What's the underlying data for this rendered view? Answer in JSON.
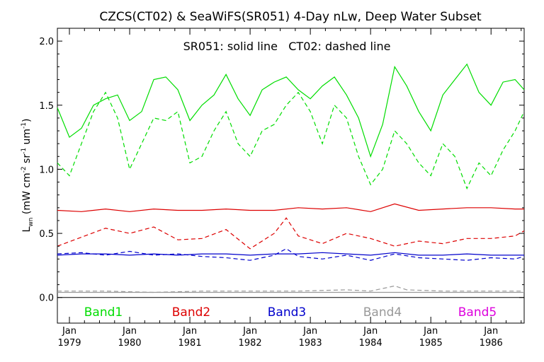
{
  "chart_data": {
    "type": "line",
    "title": "CZCS(CT02) & SeaWiFS(SR051) 4-Day nLw, Deep Water Subset",
    "subtitle": "SR051: solid line   CT02: dashed line",
    "ylabel": {
      "main": "L",
      "sub": "wn",
      "rest": " (mW cm",
      "e1": "-2",
      "mid1": " sr",
      "e2": "-1",
      "mid2": " um",
      "e3": "-1",
      "end": ")"
    },
    "ylim": [
      -0.2,
      2.1
    ],
    "xlim": [
      1978.8,
      1986.55
    ],
    "yticks": [
      0.0,
      0.5,
      1.0,
      1.5,
      2.0
    ],
    "ytick_labels": [
      "0.0",
      "0.5",
      "1.0",
      "1.5",
      "2.0"
    ],
    "xticks": [
      {
        "x": 1979.0,
        "month": "Jan",
        "year": "1979"
      },
      {
        "x": 1980.0,
        "month": "Jan",
        "year": "1980"
      },
      {
        "x": 1981.0,
        "month": "Jan",
        "year": "1981"
      },
      {
        "x": 1982.0,
        "month": "Jan",
        "year": "1982"
      },
      {
        "x": 1983.0,
        "month": "Jan",
        "year": "1983"
      },
      {
        "x": 1984.0,
        "month": "Jan",
        "year": "1984"
      },
      {
        "x": 1985.0,
        "month": "Jan",
        "year": "1985"
      },
      {
        "x": 1986.0,
        "month": "Jan",
        "year": "1986"
      }
    ],
    "legend": [
      {
        "name": "Band1",
        "color": "#00dd00"
      },
      {
        "name": "Band2",
        "color": "#dd0000"
      },
      {
        "name": "Band3",
        "color": "#0000cc"
      },
      {
        "name": "Band4",
        "color": "#999999"
      },
      {
        "name": "Band5",
        "color": "#dd00dd"
      }
    ],
    "series": [
      {
        "name": "Band1",
        "style": "solid",
        "color": "#00dd00",
        "x": [
          1978.8,
          1979.0,
          1979.2,
          1979.4,
          1979.6,
          1979.8,
          1980.0,
          1980.2,
          1980.4,
          1980.6,
          1980.8,
          1981.0,
          1981.2,
          1981.4,
          1981.6,
          1981.8,
          1982.0,
          1982.2,
          1982.4,
          1982.6,
          1982.8,
          1983.0,
          1983.2,
          1983.4,
          1983.6,
          1983.8,
          1984.0,
          1984.2,
          1984.4,
          1984.6,
          1984.8,
          1985.0,
          1985.2,
          1985.4,
          1985.6,
          1985.8,
          1986.0,
          1986.2,
          1986.4,
          1986.55
        ],
        "values": [
          1.48,
          1.25,
          1.32,
          1.5,
          1.55,
          1.58,
          1.38,
          1.45,
          1.7,
          1.72,
          1.62,
          1.38,
          1.5,
          1.58,
          1.74,
          1.55,
          1.42,
          1.62,
          1.68,
          1.72,
          1.62,
          1.55,
          1.65,
          1.72,
          1.58,
          1.4,
          1.1,
          1.35,
          1.8,
          1.65,
          1.45,
          1.3,
          1.58,
          1.7,
          1.82,
          1.6,
          1.5,
          1.68,
          1.7,
          1.62
        ]
      },
      {
        "name": "Band1",
        "style": "dashed",
        "color": "#00dd00",
        "x": [
          1978.8,
          1979.0,
          1979.2,
          1979.4,
          1979.6,
          1979.8,
          1980.0,
          1980.2,
          1980.4,
          1980.6,
          1980.8,
          1981.0,
          1981.2,
          1981.4,
          1981.6,
          1981.8,
          1982.0,
          1982.2,
          1982.4,
          1982.6,
          1982.8,
          1983.0,
          1983.2,
          1983.4,
          1983.6,
          1983.8,
          1984.0,
          1984.2,
          1984.4,
          1984.6,
          1984.8,
          1985.0,
          1985.2,
          1985.4,
          1985.6,
          1985.8,
          1986.0,
          1986.2,
          1986.4,
          1986.55
        ],
        "values": [
          1.05,
          0.95,
          1.2,
          1.45,
          1.6,
          1.4,
          1.0,
          1.2,
          1.4,
          1.38,
          1.45,
          1.05,
          1.1,
          1.3,
          1.45,
          1.2,
          1.1,
          1.3,
          1.35,
          1.5,
          1.6,
          1.45,
          1.2,
          1.5,
          1.4,
          1.1,
          0.88,
          1.0,
          1.3,
          1.2,
          1.05,
          0.95,
          1.2,
          1.1,
          0.85,
          1.05,
          0.95,
          1.15,
          1.3,
          1.45
        ]
      },
      {
        "name": "Band2",
        "style": "solid",
        "color": "#dd0000",
        "x": [
          1978.8,
          1979.2,
          1979.6,
          1980.0,
          1980.4,
          1980.8,
          1981.2,
          1981.6,
          1982.0,
          1982.4,
          1982.8,
          1983.2,
          1983.6,
          1984.0,
          1984.4,
          1984.8,
          1985.2,
          1985.6,
          1986.0,
          1986.4,
          1986.55
        ],
        "values": [
          0.68,
          0.67,
          0.69,
          0.67,
          0.69,
          0.68,
          0.68,
          0.69,
          0.68,
          0.68,
          0.7,
          0.69,
          0.7,
          0.67,
          0.73,
          0.68,
          0.69,
          0.7,
          0.7,
          0.69,
          0.69
        ]
      },
      {
        "name": "Band2",
        "style": "dashed",
        "color": "#dd0000",
        "x": [
          1978.8,
          1979.2,
          1979.6,
          1980.0,
          1980.4,
          1980.8,
          1981.2,
          1981.6,
          1982.0,
          1982.4,
          1982.6,
          1982.8,
          1983.2,
          1983.6,
          1984.0,
          1984.4,
          1984.8,
          1985.2,
          1985.6,
          1986.0,
          1986.4,
          1986.55
        ],
        "values": [
          0.4,
          0.47,
          0.54,
          0.5,
          0.55,
          0.45,
          0.46,
          0.53,
          0.38,
          0.5,
          0.62,
          0.48,
          0.42,
          0.5,
          0.46,
          0.4,
          0.44,
          0.42,
          0.46,
          0.46,
          0.48,
          0.52
        ]
      },
      {
        "name": "Band3",
        "style": "solid",
        "color": "#0000cc",
        "x": [
          1978.8,
          1979.2,
          1979.6,
          1980.0,
          1980.4,
          1980.8,
          1981.2,
          1981.6,
          1982.0,
          1982.4,
          1982.8,
          1983.2,
          1983.6,
          1984.0,
          1984.4,
          1984.8,
          1985.2,
          1985.6,
          1986.0,
          1986.4,
          1986.55
        ],
        "values": [
          0.33,
          0.34,
          0.34,
          0.33,
          0.34,
          0.33,
          0.34,
          0.34,
          0.33,
          0.34,
          0.34,
          0.35,
          0.34,
          0.33,
          0.35,
          0.33,
          0.33,
          0.34,
          0.33,
          0.33,
          0.33
        ]
      },
      {
        "name": "Band3",
        "style": "dashed",
        "color": "#0000cc",
        "x": [
          1978.8,
          1979.2,
          1979.6,
          1980.0,
          1980.4,
          1980.8,
          1981.2,
          1981.6,
          1982.0,
          1982.4,
          1982.6,
          1982.8,
          1983.2,
          1983.6,
          1984.0,
          1984.4,
          1984.8,
          1985.2,
          1985.6,
          1986.0,
          1986.4,
          1986.55
        ],
        "values": [
          0.34,
          0.35,
          0.33,
          0.36,
          0.33,
          0.34,
          0.32,
          0.31,
          0.29,
          0.33,
          0.38,
          0.32,
          0.3,
          0.33,
          0.29,
          0.34,
          0.31,
          0.3,
          0.29,
          0.31,
          0.3,
          0.32
        ]
      },
      {
        "name": "Band4",
        "style": "solid",
        "color": "#999999",
        "x": [
          1978.8,
          1979.6,
          1980.4,
          1981.2,
          1982.0,
          1982.8,
          1983.6,
          1984.4,
          1985.2,
          1986.0,
          1986.55
        ],
        "values": [
          0.04,
          0.04,
          0.04,
          0.04,
          0.04,
          0.04,
          0.04,
          0.04,
          0.04,
          0.04,
          0.04
        ]
      },
      {
        "name": "Band4",
        "style": "dashed",
        "color": "#999999",
        "x": [
          1978.8,
          1979.6,
          1980.4,
          1981.2,
          1982.0,
          1982.8,
          1983.6,
          1984.0,
          1984.4,
          1984.6,
          1985.2,
          1986.0,
          1986.55
        ],
        "values": [
          0.05,
          0.05,
          0.04,
          0.05,
          0.05,
          0.05,
          0.06,
          0.05,
          0.09,
          0.06,
          0.05,
          0.05,
          0.05
        ]
      }
    ]
  }
}
